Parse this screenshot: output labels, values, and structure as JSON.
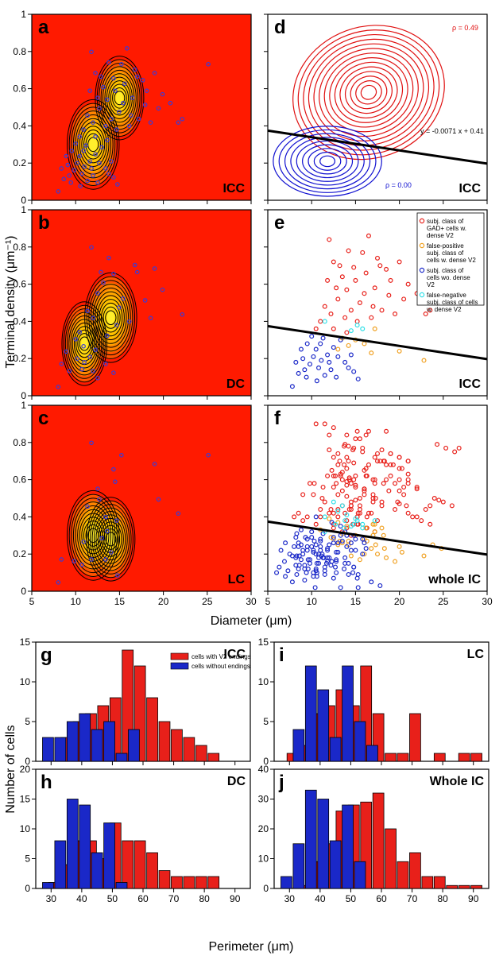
{
  "colors": {
    "red_bg": "#ff1a00",
    "subj_gad": "#e8201a",
    "false_pos": "#f0a020",
    "subj_wo": "#1a28c8",
    "false_neg": "#30e0e8",
    "contour": "#000000",
    "red_contour": "#e01010",
    "blue_contour": "#1010d0",
    "dot": "#3a3ad8"
  },
  "labels": {
    "y_axis_top": "Terminal density (μm⁻¹)",
    "x_axis_top": "Diameter (μm)",
    "y_axis_bottom": "Number of cells",
    "x_axis_bottom": "Perimeter (μm)"
  },
  "panels": {
    "a": {
      "letter": "a",
      "region": "ICC"
    },
    "b": {
      "letter": "b",
      "region": "DC"
    },
    "c": {
      "letter": "c",
      "region": "LC"
    },
    "d": {
      "letter": "d",
      "region": "ICC",
      "rho_red": "ρ = 0.49",
      "rho_blue": "ρ = 0.00",
      "equation": "y = -0.0071 x + 0.41"
    },
    "e": {
      "letter": "e",
      "region": "ICC"
    },
    "f": {
      "letter": "f",
      "region": "whole IC"
    },
    "g": {
      "letter": "g",
      "region": "ICC"
    },
    "h": {
      "letter": "h",
      "region": "DC"
    },
    "i": {
      "letter": "i",
      "region": "LC"
    },
    "j": {
      "letter": "j",
      "region": "Whole IC"
    }
  },
  "legend_e": [
    {
      "text": [
        "subj. class of",
        "GAD+ cells w.",
        "dense V2"
      ],
      "color": "#e8201a"
    },
    {
      "text": [
        "false-positive",
        "subj. class of",
        "cells w. dense V2"
      ],
      "color": "#f0a020"
    },
    {
      "text": [
        "subj. class of",
        "cells wo. dense",
        "V2"
      ],
      "color": "#1a28c8"
    },
    {
      "text": [
        "false-negative",
        "subj. class of cells",
        "w. dense V2"
      ],
      "color": "#30e0e8"
    }
  ],
  "legend_g": [
    "cells with V2 endings",
    "cells without endings"
  ],
  "chart_data": [
    {
      "type": "scatter",
      "panel": "scatter_top",
      "xlim": [
        5,
        30
      ],
      "ylim": [
        0,
        1
      ],
      "xticks": [
        "5",
        "10",
        "15",
        "20",
        "25",
        "30"
      ],
      "yticks": [
        "0",
        "0.2",
        "0.4",
        "0.6",
        "0.8",
        "1"
      ],
      "regression_line": {
        "slope": -0.0071,
        "intercept": 0.41
      },
      "series": [
        {
          "name": "subj. class of GAD+ cells w. dense V2",
          "points": [
            [
              12.0,
              0.84
            ],
            [
              16.5,
              0.86
            ],
            [
              14.2,
              0.78
            ],
            [
              15.8,
              0.77
            ],
            [
              17.5,
              0.74
            ],
            [
              12.5,
              0.72
            ],
            [
              14.8,
              0.69
            ],
            [
              16.2,
              0.66
            ],
            [
              13.5,
              0.64
            ],
            [
              15.0,
              0.62
            ],
            [
              17.8,
              0.7
            ],
            [
              18.5,
              0.68
            ],
            [
              12.8,
              0.58
            ],
            [
              14.0,
              0.57
            ],
            [
              16.0,
              0.55
            ],
            [
              13.0,
              0.52
            ],
            [
              15.5,
              0.5
            ],
            [
              17.0,
              0.48
            ],
            [
              11.5,
              0.48
            ],
            [
              14.5,
              0.46
            ],
            [
              12.2,
              0.44
            ],
            [
              13.8,
              0.42
            ],
            [
              16.8,
              0.42
            ],
            [
              11.0,
              0.4
            ],
            [
              15.2,
              0.4
            ],
            [
              18.0,
              0.46
            ],
            [
              19.5,
              0.44
            ],
            [
              20.5,
              0.52
            ],
            [
              21.0,
              0.6
            ],
            [
              19.0,
              0.62
            ],
            [
              20.0,
              0.72
            ],
            [
              22.0,
              0.55
            ],
            [
              23.5,
              0.46
            ],
            [
              23.0,
              0.44
            ],
            [
              10.5,
              0.36
            ],
            [
              12.5,
              0.36
            ],
            [
              14.0,
              0.34
            ],
            [
              11.8,
              0.62
            ],
            [
              13.2,
              0.7
            ],
            [
              26.8,
              0.77
            ],
            [
              18.8,
              0.54
            ],
            [
              17.2,
              0.58
            ]
          ]
        },
        {
          "name": "false-positive subj. class of cells w. dense V2",
          "points": [
            [
              13.5,
              0.31
            ],
            [
              15.0,
              0.3
            ],
            [
              16.0,
              0.28
            ],
            [
              14.2,
              0.27
            ],
            [
              13.0,
              0.25
            ],
            [
              16.8,
              0.23
            ],
            [
              20.0,
              0.24
            ],
            [
              22.8,
              0.19
            ],
            [
              17.2,
              0.36
            ]
          ]
        },
        {
          "name": "subj. class of cells wo. dense V2",
          "points": [
            [
              7.8,
              0.05
            ],
            [
              8.5,
              0.12
            ],
            [
              9.2,
              0.14
            ],
            [
              9.8,
              0.17
            ],
            [
              10.2,
              0.21
            ],
            [
              10.5,
              0.25
            ],
            [
              11.0,
              0.28
            ],
            [
              11.3,
              0.31
            ],
            [
              11.8,
              0.22
            ],
            [
              12.0,
              0.18
            ],
            [
              12.5,
              0.26
            ],
            [
              13.0,
              0.21
            ],
            [
              13.8,
              0.18
            ],
            [
              14.2,
              0.15
            ],
            [
              14.8,
              0.13
            ],
            [
              15.3,
              0.09
            ],
            [
              8.8,
              0.25
            ],
            [
              9.5,
              0.28
            ],
            [
              10.8,
              0.15
            ],
            [
              11.5,
              0.11
            ],
            [
              12.8,
              0.1
            ],
            [
              13.3,
              0.3
            ],
            [
              10.0,
              0.32
            ],
            [
              9.0,
              0.2
            ],
            [
              8.2,
              0.18
            ],
            [
              10.6,
              0.08
            ],
            [
              12.2,
              0.14
            ],
            [
              14.5,
              0.22
            ],
            [
              11.1,
              0.19
            ],
            [
              9.4,
              0.1
            ]
          ]
        },
        {
          "name": "false-negative subj. class of cells w. dense V2",
          "points": [
            [
              14.5,
              0.35
            ],
            [
              15.2,
              0.38
            ],
            [
              11.5,
              0.4
            ],
            [
              15.8,
              0.36
            ]
          ]
        }
      ]
    },
    {
      "type": "bar",
      "panel": "g",
      "xlim": [
        25,
        95
      ],
      "ylim": [
        0,
        15
      ],
      "yticks": [
        "0",
        "5",
        "10",
        "15"
      ],
      "series": [
        {
          "name": "cells with V2 endings",
          "x": [
            31,
            35,
            39,
            43,
            47,
            51,
            55,
            59,
            63,
            67,
            71,
            75,
            79,
            83
          ],
          "values": [
            0,
            3,
            5,
            6,
            7,
            8,
            14,
            12,
            8,
            5,
            4,
            3,
            2,
            1
          ]
        },
        {
          "name": "cells without endings",
          "x": [
            29,
            33,
            37,
            41,
            45,
            49,
            53,
            57
          ],
          "values": [
            3,
            3,
            5,
            6,
            4,
            5,
            1,
            4
          ]
        }
      ]
    },
    {
      "type": "bar",
      "panel": "h",
      "xlim": [
        25,
        95
      ],
      "ylim": [
        0,
        20
      ],
      "yticks": [
        "0",
        "5",
        "10",
        "15",
        "20"
      ],
      "series": [
        {
          "name": "cells with V2 endings",
          "x": [
            31,
            35,
            39,
            43,
            47,
            51,
            55,
            59,
            63,
            67,
            71,
            75,
            79,
            83
          ],
          "values": [
            1,
            4,
            8,
            8,
            5,
            11,
            8,
            8,
            6,
            3,
            2,
            2,
            2,
            2
          ]
        },
        {
          "name": "cells without endings",
          "x": [
            29,
            33,
            37,
            41,
            45,
            49,
            53,
            57
          ],
          "values": [
            1,
            8,
            15,
            14,
            6,
            11,
            1,
            0
          ]
        }
      ]
    },
    {
      "type": "bar",
      "panel": "i",
      "xlim": [
        25,
        95
      ],
      "ylim": [
        0,
        15
      ],
      "yticks": [
        "0",
        "5",
        "10",
        "15"
      ],
      "series": [
        {
          "name": "cells with V2 endings",
          "x": [
            31,
            35,
            39,
            43,
            47,
            51,
            55,
            59,
            63,
            67,
            71,
            75,
            79,
            83,
            87,
            91
          ],
          "values": [
            1,
            2,
            6,
            7,
            9,
            7,
            12,
            6,
            1,
            1,
            6,
            0,
            1,
            0,
            1,
            1
          ]
        },
        {
          "name": "cells without endings",
          "x": [
            29,
            33,
            37,
            41,
            45,
            49,
            53,
            57
          ],
          "values": [
            0,
            4,
            12,
            9,
            3,
            12,
            5,
            2
          ]
        }
      ]
    },
    {
      "type": "bar",
      "panel": "j",
      "xlim": [
        25,
        95
      ],
      "ylim": [
        0,
        40
      ],
      "yticks": [
        "0",
        "10",
        "20",
        "30",
        "40"
      ],
      "series": [
        {
          "name": "cells with V2 endings",
          "x": [
            31,
            35,
            39,
            43,
            47,
            51,
            55,
            59,
            63,
            67,
            71,
            75,
            79,
            83,
            87,
            91
          ],
          "values": [
            0,
            1,
            9,
            15,
            26,
            28,
            29,
            32,
            20,
            9,
            12,
            4,
            4,
            1,
            1,
            1
          ]
        },
        {
          "name": "cells without endings",
          "x": [
            29,
            33,
            37,
            41,
            45,
            49,
            53,
            57
          ],
          "values": [
            4,
            15,
            33,
            30,
            16,
            28,
            9,
            0
          ]
        }
      ]
    }
  ]
}
